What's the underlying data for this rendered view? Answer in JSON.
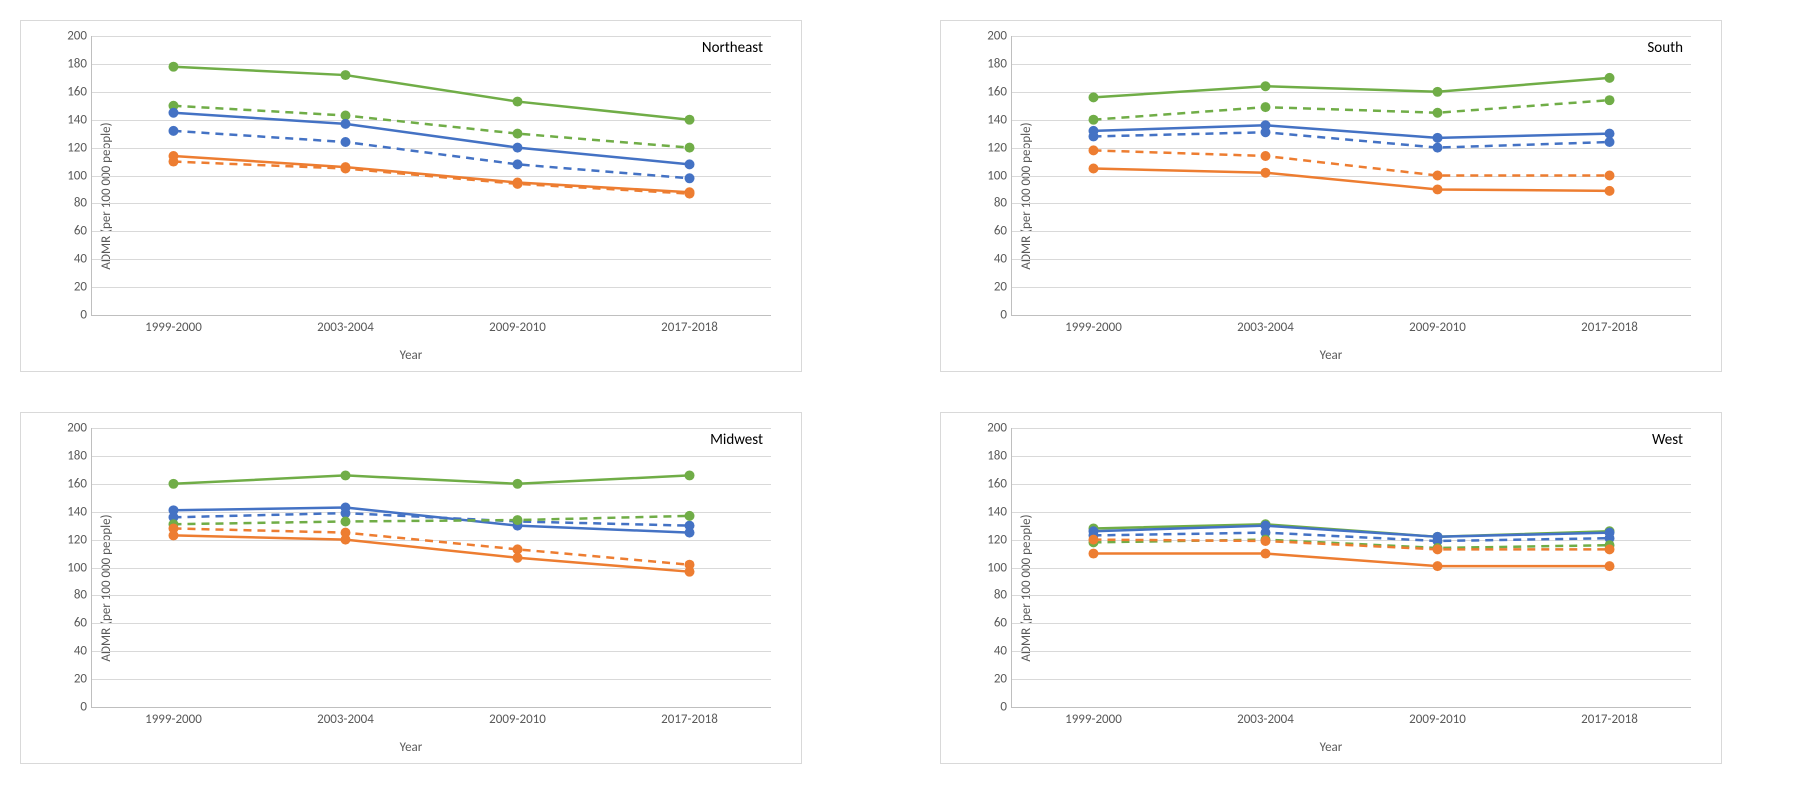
{
  "common": {
    "ylabel": "ADMR (per 100 000 people)",
    "xlabel": "Year",
    "categories": [
      "1999-2000",
      "2003-2004",
      "2009-2010",
      "2017-2018"
    ],
    "ylim": [
      0,
      200
    ],
    "ytick_step": 20,
    "grid_color": "#d9d9d9",
    "axis_color": "#bfbfbf",
    "text_color": "#595959",
    "label_fontsize": 13,
    "region_fontsize": 15,
    "marker_radius": 5,
    "line_width": 2.5,
    "dash_pattern": "8,6"
  },
  "colors": {
    "green": "#70ad47",
    "blue": "#4472c4",
    "orange": "#ed7d31"
  },
  "charts": [
    {
      "region": "Northeast",
      "series": [
        {
          "color": "green",
          "dashed": false,
          "values": [
            178,
            172,
            153,
            140
          ]
        },
        {
          "color": "green",
          "dashed": true,
          "values": [
            150,
            143,
            130,
            120
          ]
        },
        {
          "color": "blue",
          "dashed": false,
          "values": [
            145,
            137,
            120,
            108
          ]
        },
        {
          "color": "blue",
          "dashed": true,
          "values": [
            132,
            124,
            108,
            98
          ]
        },
        {
          "color": "orange",
          "dashed": false,
          "values": [
            114,
            106,
            95,
            88
          ]
        },
        {
          "color": "orange",
          "dashed": true,
          "values": [
            110,
            105,
            94,
            87
          ]
        }
      ]
    },
    {
      "region": "South",
      "series": [
        {
          "color": "green",
          "dashed": false,
          "values": [
            156,
            164,
            160,
            170
          ]
        },
        {
          "color": "green",
          "dashed": true,
          "values": [
            140,
            149,
            145,
            154
          ]
        },
        {
          "color": "blue",
          "dashed": false,
          "values": [
            132,
            136,
            127,
            130
          ]
        },
        {
          "color": "blue",
          "dashed": true,
          "values": [
            128,
            131,
            120,
            124
          ]
        },
        {
          "color": "orange",
          "dashed": true,
          "values": [
            118,
            114,
            100,
            100
          ]
        },
        {
          "color": "orange",
          "dashed": false,
          "values": [
            105,
            102,
            90,
            89
          ]
        }
      ]
    },
    {
      "region": "Midwest",
      "series": [
        {
          "color": "green",
          "dashed": false,
          "values": [
            160,
            166,
            160,
            166
          ]
        },
        {
          "color": "blue",
          "dashed": false,
          "values": [
            141,
            143,
            130,
            125
          ]
        },
        {
          "color": "blue",
          "dashed": true,
          "values": [
            136,
            139,
            133,
            130
          ]
        },
        {
          "color": "green",
          "dashed": true,
          "values": [
            131,
            133,
            134,
            137
          ]
        },
        {
          "color": "orange",
          "dashed": true,
          "values": [
            128,
            125,
            113,
            102
          ]
        },
        {
          "color": "orange",
          "dashed": false,
          "values": [
            123,
            120,
            107,
            97
          ]
        }
      ]
    },
    {
      "region": "West",
      "series": [
        {
          "color": "green",
          "dashed": false,
          "values": [
            128,
            131,
            122,
            126
          ]
        },
        {
          "color": "blue",
          "dashed": false,
          "values": [
            126,
            130,
            122,
            125
          ]
        },
        {
          "color": "blue",
          "dashed": true,
          "values": [
            123,
            125,
            119,
            121
          ]
        },
        {
          "color": "green",
          "dashed": true,
          "values": [
            118,
            120,
            114,
            116
          ]
        },
        {
          "color": "orange",
          "dashed": true,
          "values": [
            120,
            119,
            113,
            113
          ]
        },
        {
          "color": "orange",
          "dashed": false,
          "values": [
            110,
            110,
            101,
            101
          ]
        }
      ]
    }
  ]
}
